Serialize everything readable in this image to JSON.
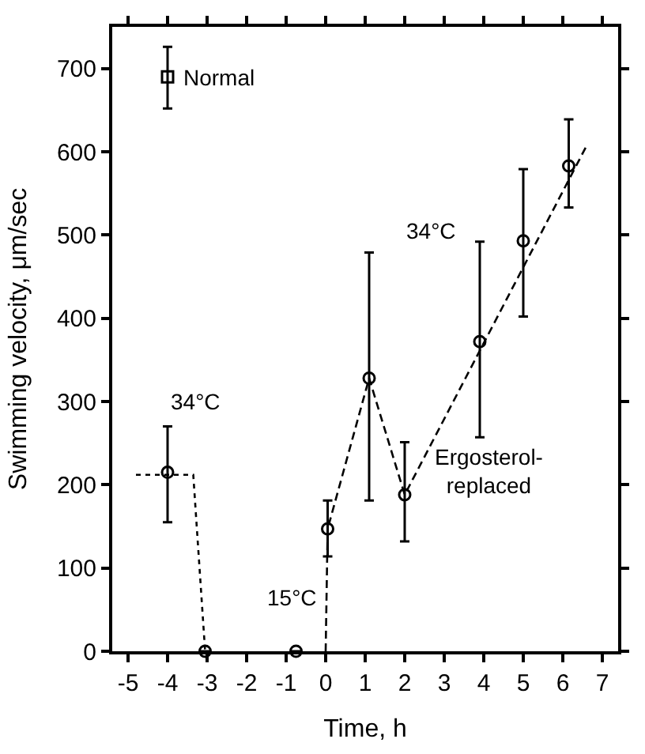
{
  "chart_data": {
    "type": "scatter",
    "xlabel": "Time, h",
    "ylabel": "Swimming velocity, μm/sec",
    "xlim": [
      -5.4,
      7.4
    ],
    "xticks": [
      -5,
      -4,
      -3,
      -2,
      -1,
      0,
      1,
      2,
      3,
      4,
      5,
      6,
      7
    ],
    "ylim": [
      0,
      750
    ],
    "yticks": [
      0,
      100,
      200,
      300,
      400,
      500,
      600,
      700
    ],
    "series": [
      {
        "type": "line",
        "line_style": "dotted",
        "marker": "none",
        "color": "#000000",
        "x": [
          -4.8,
          -3.35,
          -3.05
        ],
        "values": [
          212,
          212,
          0
        ]
      },
      {
        "type": "line",
        "line_style": "dashed",
        "marker": "none",
        "color": "#000000",
        "x": [
          0,
          0.05,
          1.1,
          2,
          6.6
        ],
        "values": [
          0,
          147,
          328,
          188,
          607
        ]
      },
      {
        "marker": "square",
        "color": "#000000",
        "x": [
          -4
        ],
        "values": [
          690
        ],
        "errors": [
          [
            652,
            726
          ]
        ]
      },
      {
        "marker": "circle",
        "color": "#000000",
        "x": [
          -4,
          -3.05,
          -0.75,
          0.05,
          1.1,
          2,
          3.9,
          5,
          6.15
        ],
        "values": [
          215,
          0,
          0,
          147,
          328,
          188,
          372,
          493,
          583
        ],
        "errors": [
          [
            155,
            270
          ],
          null,
          null,
          [
            114,
            181
          ],
          [
            181,
            479
          ],
          [
            132,
            251
          ],
          [
            257,
            492
          ],
          [
            402,
            579
          ],
          [
            533,
            639
          ]
        ]
      }
    ],
    "annotations": [
      {
        "text": "Normal",
        "x": -4,
        "y": 690
      },
      "34°C",
      "15°C",
      "34°C",
      "Ergosterol-\nreplaced"
    ]
  }
}
